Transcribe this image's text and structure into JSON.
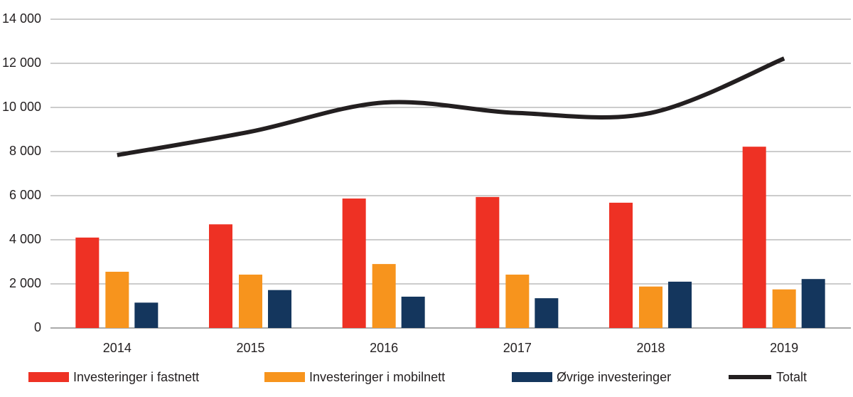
{
  "chart_data": {
    "type": "bar-line",
    "categories": [
      "2014",
      "2015",
      "2016",
      "2017",
      "2018",
      "2019"
    ],
    "series": [
      {
        "name": "Investeringer i fastnett",
        "type": "bar",
        "color": "#ee3124",
        "values": [
          4100,
          4700,
          5870,
          5940,
          5680,
          8220
        ]
      },
      {
        "name": "Investeringer i mobilnett",
        "type": "bar",
        "color": "#f7941d",
        "values": [
          2550,
          2420,
          2900,
          2420,
          1880,
          1750
        ]
      },
      {
        "name": "Øvrige investeringer",
        "type": "bar",
        "color": "#14365d",
        "values": [
          1150,
          1720,
          1420,
          1350,
          2100,
          2220
        ]
      },
      {
        "name": "Totalt",
        "type": "line",
        "color": "#231f20",
        "values": [
          7840,
          8900,
          10220,
          9750,
          9750,
          12220
        ]
      }
    ],
    "ylim": [
      0,
      14000
    ],
    "yticks": [
      0,
      {
        "value": 2000,
        "label": "2 000"
      },
      {
        "value": 4000,
        "label": "4 000"
      },
      {
        "value": 6000,
        "label": "6 000"
      },
      {
        "value": 8000,
        "label": "8 000"
      },
      {
        "value": 10000,
        "label": "10 000"
      },
      {
        "value": 12000,
        "label": "12 000"
      },
      {
        "value": 14000,
        "label": "14 000"
      }
    ],
    "grid": true,
    "legend": "bottom"
  }
}
